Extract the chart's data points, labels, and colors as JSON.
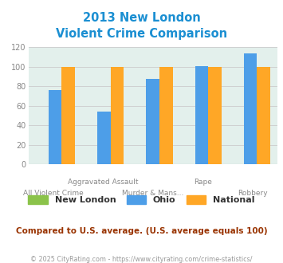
{
  "title_line1": "2013 New London",
  "title_line2": "Violent Crime Comparison",
  "new_london": [
    0,
    0,
    0,
    0,
    0
  ],
  "ohio": [
    76,
    54,
    88,
    101,
    114
  ],
  "national": [
    100,
    100,
    100,
    100,
    100
  ],
  "new_london_color": "#8BC34A",
  "ohio_color": "#4D9EE8",
  "national_color": "#FFA726",
  "ylim": [
    0,
    120
  ],
  "yticks": [
    0,
    20,
    40,
    60,
    80,
    100,
    120
  ],
  "bg_color": "#E3F0EC",
  "title_color": "#1B8FD2",
  "tick_label_color": "#888888",
  "subtitle_text": "Compared to U.S. average. (U.S. average equals 100)",
  "subtitle_color": "#993300",
  "footer_text": "© 2025 CityRating.com - https://www.cityrating.com/crime-statistics/",
  "footer_color": "#999999",
  "legend_labels": [
    "New London",
    "Ohio",
    "National"
  ],
  "grid_color": "#cccccc",
  "xlabels_row1": [
    "",
    "Aggravated Assault",
    "",
    "Rape",
    ""
  ],
  "xlabels_row2": [
    "All Violent Crime",
    "",
    "Murder & Mans...",
    "",
    "Robbery"
  ]
}
